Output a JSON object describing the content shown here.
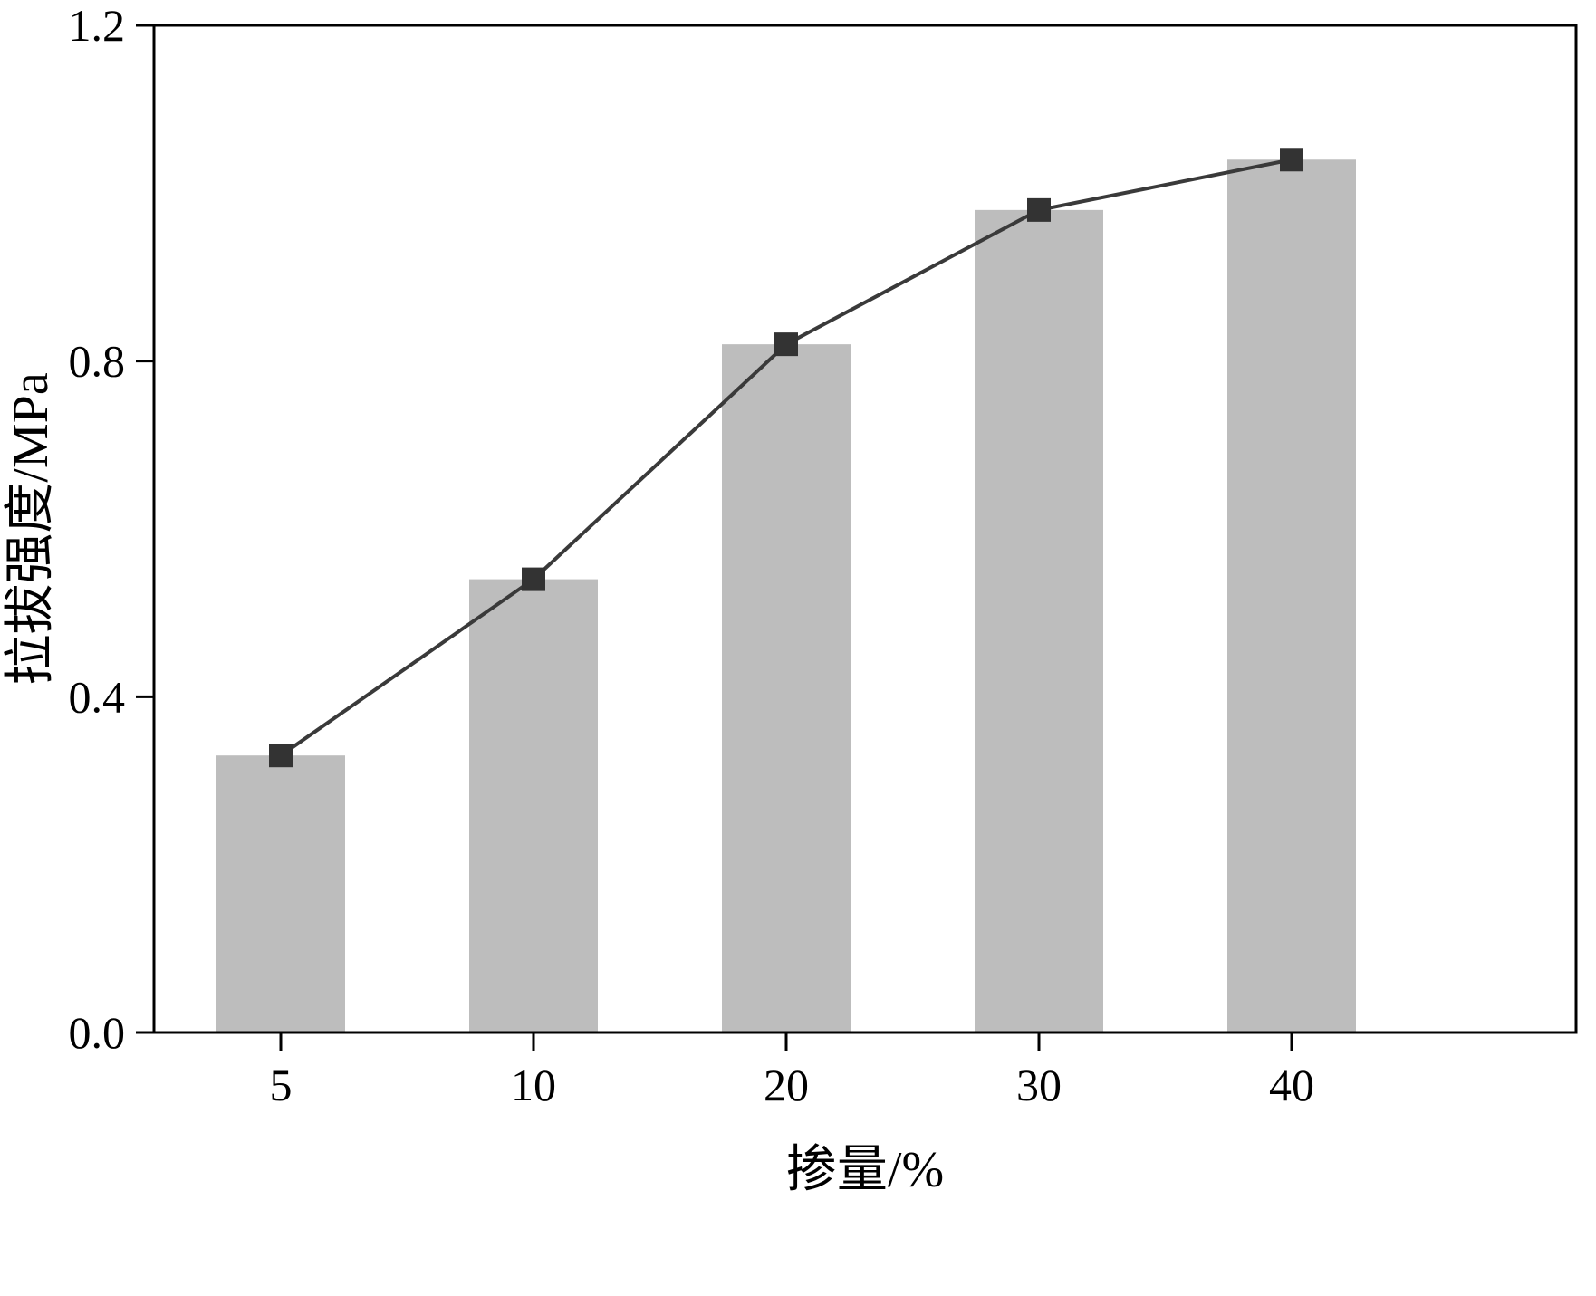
{
  "chart_data": {
    "type": "bar",
    "title": "",
    "categories": [
      "5",
      "10",
      "20",
      "30",
      "40"
    ],
    "series": [
      {
        "name": "bar-series",
        "type": "bar",
        "values": [
          0.33,
          0.54,
          0.82,
          0.98,
          1.04
        ]
      },
      {
        "name": "line-series",
        "type": "line",
        "values": [
          0.33,
          0.54,
          0.82,
          0.98,
          1.04
        ]
      }
    ],
    "xlabel": "掺量/%",
    "ylabel": "拉拔强度/MPa",
    "ylim": [
      0.0,
      1.2
    ],
    "yticks": [
      0.0,
      0.4,
      0.8,
      1.2
    ],
    "y_tick_decimals": 1,
    "grid": false,
    "legend": "none",
    "colors": {
      "bar": "#bdbdbd",
      "line": "#3a3a3a",
      "marker": "#333333",
      "axis": "#000000"
    }
  }
}
